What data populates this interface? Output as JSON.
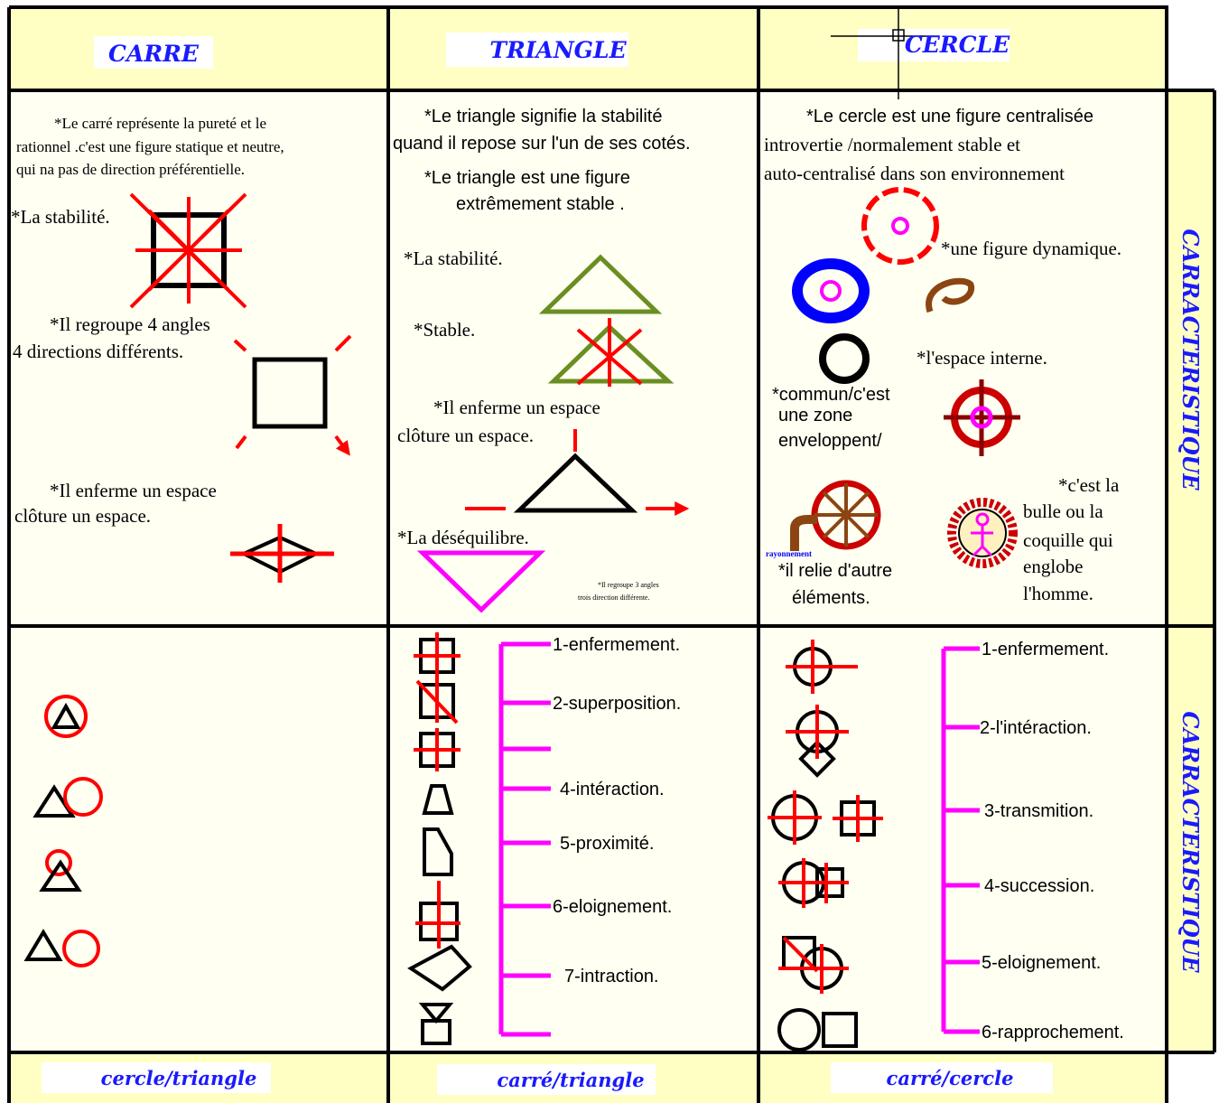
{
  "header": {
    "columns": [
      "CARRE",
      "TRIANGLE",
      "CERCLE"
    ]
  },
  "side_labels": [
    "CARRACTERISTIQUE",
    "CARRACTERISTIQUE"
  ],
  "footer": {
    "columns": [
      "cercle/triangle",
      "carré/triangle",
      "carré/cercle"
    ]
  },
  "carre": {
    "description": [
      "*Le carré représente la pureté et le",
      "rationnel .c'est une figure statique et neutre,",
      "qui na pas de direction préférentielle."
    ],
    "notes": [
      "*La stabilité.",
      "*Il regroupe 4 angles",
      "4 directions différents.",
      "*Il enferme un espace",
      "clôture un espace."
    ]
  },
  "triangle": {
    "description": [
      "*Le triangle signifie la stabilité",
      "quand il repose sur l'un de ses cotés.",
      "*Le triangle est une figure",
      "extrêmement stable ."
    ],
    "notes": [
      "*La stabilité.",
      "*Stable.",
      "*Il enferme un espace",
      "clôture un espace.",
      "*La déséquilibre.",
      "*Il regroupe 3 angles",
      "trois direction différente."
    ],
    "relations": [
      "1-enfermement.",
      "2-superposition.",
      "4-intéraction.",
      "5-proximité.",
      "6-eloignement.",
      "7-intraction."
    ]
  },
  "cercle": {
    "description": [
      "*Le cercle est une figure centralisée",
      "introvertie /normalement stable et",
      "auto-centralisé dans son environnement"
    ],
    "notes": [
      "*une figure dynamique.",
      "*l'espace interne.",
      "*commun/c'est",
      "une zone",
      "enveloppent/",
      "*c'est la",
      "bulle ou la",
      "coquille qui",
      "englobe",
      "l'homme.",
      "rayonnement",
      "*il relie d'autre",
      "éléments."
    ],
    "relations": [
      "1-enfermement.",
      "2-l'intéraction.",
      "3-transmition.",
      "4-succession.",
      "5-eloignement.",
      "6-rapprochement."
    ]
  }
}
